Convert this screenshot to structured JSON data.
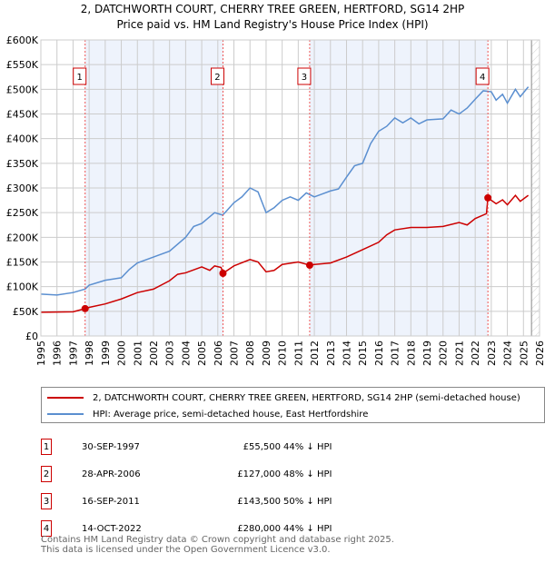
{
  "chart_data": {
    "type": "line",
    "title": "2, DATCHWORTH COURT, CHERRY TREE GREEN, HERTFORD, SG14 2HP",
    "subtitle": "Price paid vs. HM Land Registry's House Price Index (HPI)",
    "xlim": [
      1995,
      2026
    ],
    "ylim": [
      0,
      600000
    ],
    "yticks": [
      0,
      50000,
      100000,
      150000,
      200000,
      250000,
      300000,
      350000,
      400000,
      450000,
      500000,
      550000,
      600000
    ],
    "ytick_labels": [
      "£0",
      "£50K",
      "£100K",
      "£150K",
      "£200K",
      "£250K",
      "£300K",
      "£350K",
      "£400K",
      "£450K",
      "£500K",
      "£550K",
      "£600K"
    ],
    "xticks": [
      "1995",
      "1996",
      "1997",
      "1998",
      "1999",
      "2000",
      "2001",
      "2002",
      "2003",
      "2004",
      "2005",
      "2006",
      "2007",
      "2008",
      "2009",
      "2010",
      "2011",
      "2012",
      "2013",
      "2014",
      "2015",
      "2016",
      "2017",
      "2018",
      "2019",
      "2020",
      "2021",
      "2022",
      "2023",
      "2024",
      "2025",
      "2026"
    ],
    "grid": true,
    "shaded_ranges": [
      [
        1997.75,
        2006.32
      ],
      [
        2011.71,
        2022.79
      ]
    ],
    "hatched_from": 2025.5,
    "series": [
      {
        "name": "2, DATCHWORTH COURT, CHERRY TREE GREEN, HERTFORD, SG14 2HP (semi-detached house)",
        "color": "#cc0000",
        "points": [
          [
            1995,
            48000
          ],
          [
            1997,
            49000
          ],
          [
            1997.75,
            55500
          ],
          [
            1998,
            58000
          ],
          [
            1999,
            65000
          ],
          [
            2000,
            75000
          ],
          [
            2001,
            88000
          ],
          [
            2002,
            95000
          ],
          [
            2003,
            112000
          ],
          [
            2003.5,
            125000
          ],
          [
            2004,
            128000
          ],
          [
            2005,
            140000
          ],
          [
            2005.5,
            133000
          ],
          [
            2005.8,
            142000
          ],
          [
            2006.2,
            139000
          ],
          [
            2006.32,
            127000
          ],
          [
            2007,
            142000
          ],
          [
            2008,
            155000
          ],
          [
            2008.5,
            150000
          ],
          [
            2009,
            130000
          ],
          [
            2009.5,
            133000
          ],
          [
            2010,
            145000
          ],
          [
            2011,
            150000
          ],
          [
            2011.71,
            143500
          ],
          [
            2012,
            145000
          ],
          [
            2013,
            148000
          ],
          [
            2014,
            160000
          ],
          [
            2015,
            175000
          ],
          [
            2016,
            190000
          ],
          [
            2016.5,
            205000
          ],
          [
            2017,
            215000
          ],
          [
            2018,
            220000
          ],
          [
            2019,
            220000
          ],
          [
            2020,
            222000
          ],
          [
            2021,
            230000
          ],
          [
            2021.5,
            225000
          ],
          [
            2022,
            238000
          ],
          [
            2022.7,
            248000
          ],
          [
            2022.79,
            280000
          ],
          [
            2023.3,
            268000
          ],
          [
            2023.7,
            276000
          ],
          [
            2024,
            266000
          ],
          [
            2024.5,
            285000
          ],
          [
            2024.8,
            273000
          ],
          [
            2025.3,
            285000
          ]
        ]
      },
      {
        "name": "HPI: Average price, semi-detached house, East Hertfordshire",
        "color": "#5b8fd0",
        "points": [
          [
            1995,
            85000
          ],
          [
            1996,
            83000
          ],
          [
            1997,
            88000
          ],
          [
            1997.75,
            95000
          ],
          [
            1998,
            103000
          ],
          [
            1999,
            113000
          ],
          [
            2000,
            118000
          ],
          [
            2000.5,
            135000
          ],
          [
            2001,
            148000
          ],
          [
            2002,
            160000
          ],
          [
            2003,
            172000
          ],
          [
            2004,
            200000
          ],
          [
            2004.5,
            222000
          ],
          [
            2005,
            228000
          ],
          [
            2005.8,
            250000
          ],
          [
            2006.3,
            245000
          ],
          [
            2006.5,
            252000
          ],
          [
            2007,
            270000
          ],
          [
            2007.5,
            282000
          ],
          [
            2008,
            300000
          ],
          [
            2008.5,
            292000
          ],
          [
            2009,
            250000
          ],
          [
            2009.5,
            260000
          ],
          [
            2010,
            275000
          ],
          [
            2010.5,
            282000
          ],
          [
            2011,
            275000
          ],
          [
            2011.5,
            290000
          ],
          [
            2012,
            282000
          ],
          [
            2012.5,
            288000
          ],
          [
            2013,
            294000
          ],
          [
            2013.5,
            298000
          ],
          [
            2014,
            322000
          ],
          [
            2014.5,
            345000
          ],
          [
            2015,
            350000
          ],
          [
            2015.5,
            390000
          ],
          [
            2016,
            415000
          ],
          [
            2016.5,
            425000
          ],
          [
            2017,
            442000
          ],
          [
            2017.5,
            432000
          ],
          [
            2018,
            442000
          ],
          [
            2018.5,
            430000
          ],
          [
            2019,
            438000
          ],
          [
            2020,
            440000
          ],
          [
            2020.5,
            458000
          ],
          [
            2021,
            450000
          ],
          [
            2021.5,
            462000
          ],
          [
            2022,
            480000
          ],
          [
            2022.5,
            497000
          ],
          [
            2023,
            495000
          ],
          [
            2023.3,
            478000
          ],
          [
            2023.7,
            490000
          ],
          [
            2024,
            472000
          ],
          [
            2024.5,
            500000
          ],
          [
            2024.8,
            485000
          ],
          [
            2025.3,
            505000
          ]
        ]
      }
    ],
    "markers": [
      {
        "label": "1",
        "x": 1997.75,
        "y": 55500
      },
      {
        "label": "2",
        "x": 2006.32,
        "y": 127000
      },
      {
        "label": "3",
        "x": 2011.71,
        "y": 143500
      },
      {
        "label": "4",
        "x": 2022.79,
        "y": 280000
      }
    ]
  },
  "legend": {
    "property": "2, DATCHWORTH COURT, CHERRY TREE GREEN, HERTFORD, SG14 2HP (semi-detached house)",
    "hpi": "HPI: Average price, semi-detached house, East Hertfordshire"
  },
  "transactions": [
    {
      "num": "1",
      "date": "30-SEP-1997",
      "price": "£55,500",
      "hpi": "44% ↓ HPI"
    },
    {
      "num": "2",
      "date": "28-APR-2006",
      "price": "£127,000",
      "hpi": "48% ↓ HPI"
    },
    {
      "num": "3",
      "date": "16-SEP-2011",
      "price": "£143,500",
      "hpi": "50% ↓ HPI"
    },
    {
      "num": "4",
      "date": "14-OCT-2022",
      "price": "£280,000",
      "hpi": "44% ↓ HPI"
    }
  ],
  "footer": {
    "line1": "Contains HM Land Registry data © Crown copyright and database right 2025.",
    "line2": "This data is licensed under the Open Government Licence v3.0."
  }
}
